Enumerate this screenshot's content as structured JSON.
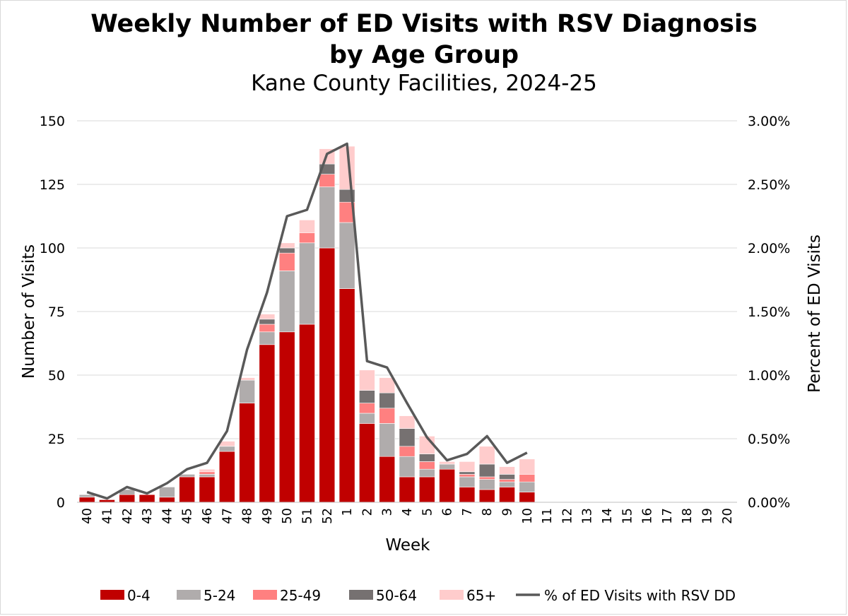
{
  "chart_data": {
    "type": "bar",
    "title": "Weekly Number of ED Visits with RSV Diagnosis",
    "title_line2": "by Age Group",
    "subtitle": "Kane County Facilities, 2024-25",
    "xlabel": "Week",
    "ylabel": "Number of Visits",
    "y2label": "Percent of ED Visits",
    "ylim": [
      0,
      150
    ],
    "yticks": [
      0,
      25,
      50,
      75,
      100,
      125,
      150
    ],
    "y2lim": [
      0,
      3.0
    ],
    "y2ticks": [
      "0.00%",
      "0.50%",
      "1.00%",
      "1.50%",
      "2.00%",
      "2.50%",
      "3.00%"
    ],
    "grid": true,
    "stacked": true,
    "legend_position": "bottom",
    "categories": [
      "40",
      "41",
      "42",
      "43",
      "44",
      "45",
      "46",
      "47",
      "48",
      "49",
      "50",
      "51",
      "52",
      "1",
      "2",
      "3",
      "4",
      "5",
      "6",
      "7",
      "8",
      "9",
      "10",
      "11",
      "12",
      "13",
      "14",
      "15",
      "16",
      "17",
      "18",
      "19",
      "20"
    ],
    "series": [
      {
        "name": "0-4",
        "color": "#c00000",
        "values": [
          2,
          1,
          3,
          3,
          2,
          10,
          10,
          20,
          39,
          62,
          67,
          70,
          100,
          84,
          31,
          18,
          10,
          10,
          13,
          6,
          5,
          6,
          4,
          null,
          null,
          null,
          null,
          null,
          null,
          null,
          null,
          null,
          null
        ]
      },
      {
        "name": "5-24",
        "color": "#b0acac",
        "values": [
          1,
          0,
          2,
          0,
          4,
          1,
          1,
          2,
          9,
          5,
          24,
          32,
          24,
          26,
          4,
          13,
          8,
          3,
          2,
          4,
          4,
          2,
          4,
          null,
          null,
          null,
          null,
          null,
          null,
          null,
          null,
          null,
          null
        ]
      },
      {
        "name": "25-49",
        "color": "#ff8080",
        "values": [
          0,
          0,
          0,
          0,
          0,
          0,
          1,
          0,
          0,
          3,
          7,
          4,
          5,
          8,
          4,
          6,
          4,
          3,
          0,
          1,
          1,
          1,
          3,
          null,
          null,
          null,
          null,
          null,
          null,
          null,
          null,
          null,
          null
        ]
      },
      {
        "name": "50-64",
        "color": "#767171",
        "values": [
          0,
          0,
          0,
          0,
          0,
          0,
          0,
          0,
          0,
          2,
          2,
          0,
          4,
          5,
          5,
          6,
          7,
          3,
          0,
          1,
          5,
          2,
          0,
          null,
          null,
          null,
          null,
          null,
          null,
          null,
          null,
          null,
          null
        ]
      },
      {
        "name": "65+",
        "color": "#ffcccc",
        "values": [
          0,
          0,
          0,
          0,
          0,
          0,
          1,
          2,
          1,
          2,
          2,
          5,
          6,
          17,
          8,
          6,
          5,
          7,
          1,
          4,
          7,
          3,
          6,
          null,
          null,
          null,
          null,
          null,
          null,
          null,
          null,
          null,
          null
        ]
      }
    ],
    "line_series": {
      "name": "% of ED Visits with RSV DD",
      "color": "#595959",
      "axis": "right",
      "values": [
        0.08,
        0.03,
        0.12,
        0.07,
        0.15,
        0.26,
        0.31,
        0.56,
        1.2,
        1.65,
        2.25,
        2.3,
        2.74,
        2.82,
        1.11,
        1.06,
        0.78,
        0.51,
        0.33,
        0.38,
        0.52,
        0.31,
        0.39,
        null,
        null,
        null,
        null,
        null,
        null,
        null,
        null,
        null,
        null
      ]
    }
  }
}
